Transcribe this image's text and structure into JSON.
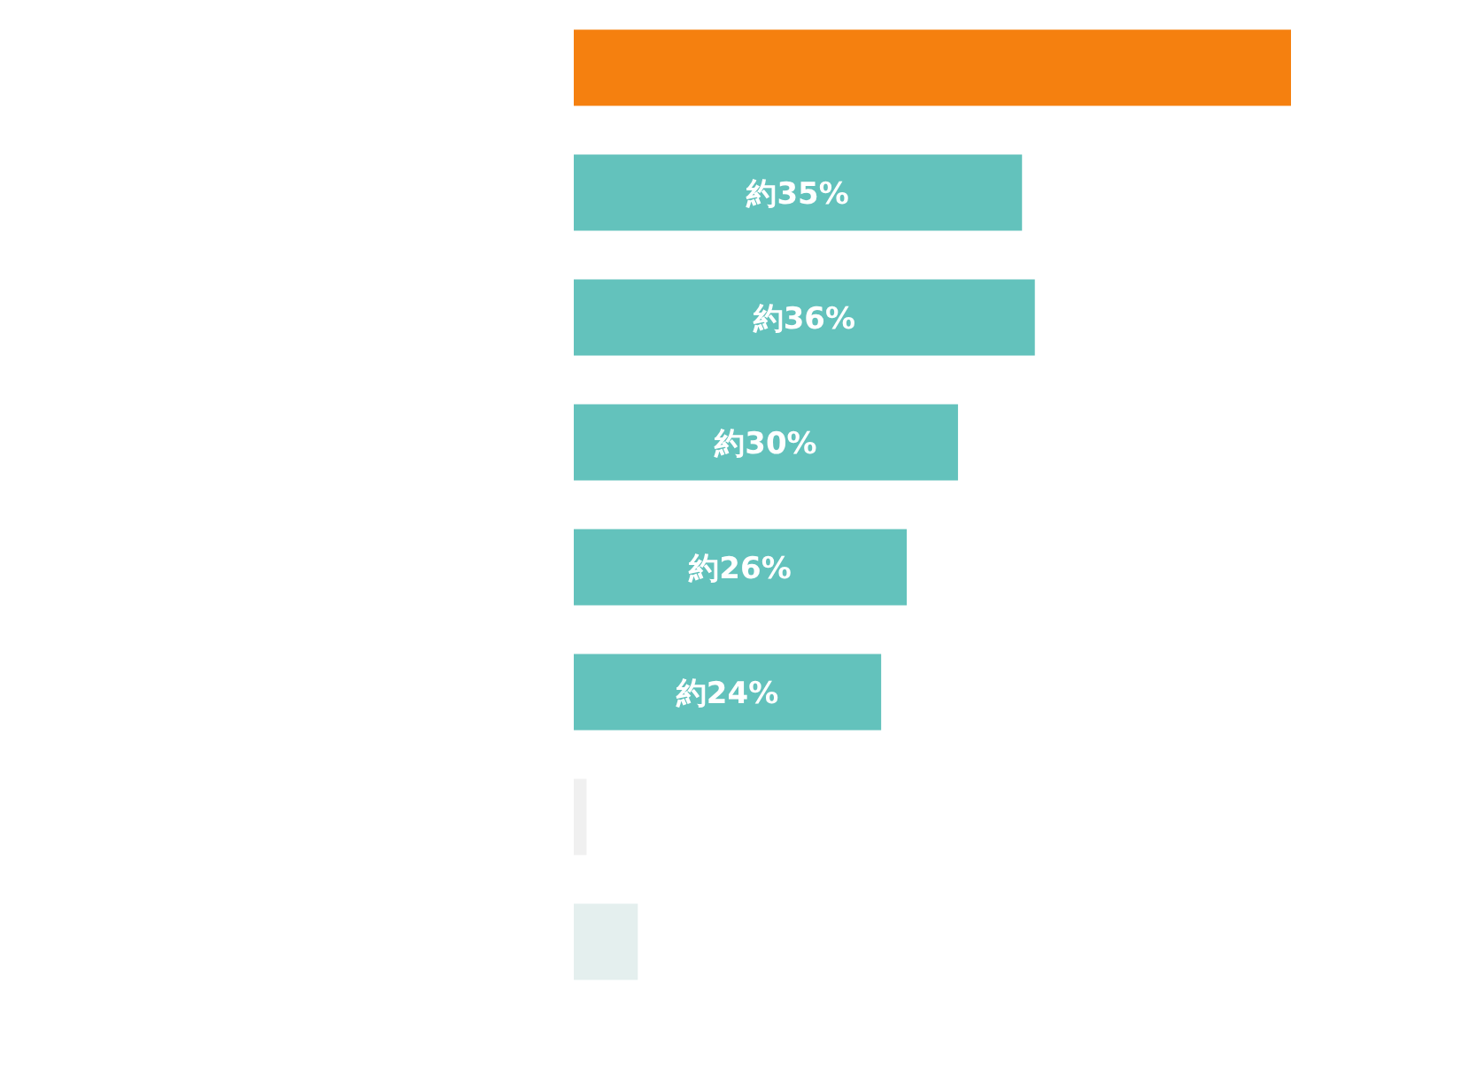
{
  "chart_data": {
    "type": "bar",
    "orientation": "horizontal",
    "categories": [
      null,
      null,
      null,
      null,
      null,
      null,
      null,
      null
    ],
    "values": [
      56,
      35,
      36,
      30,
      26,
      24,
      1,
      5
    ],
    "colors": [
      "#f5800f",
      "#63c2bc",
      "#63c2bc",
      "#63c2bc",
      "#63c2bc",
      "#63c2bc",
      "#f0f0f0",
      "#e4efee"
    ],
    "value_labels": [
      null,
      "約35%",
      "約36%",
      "約30%",
      "約26%",
      "約24%",
      null,
      null
    ]
  }
}
